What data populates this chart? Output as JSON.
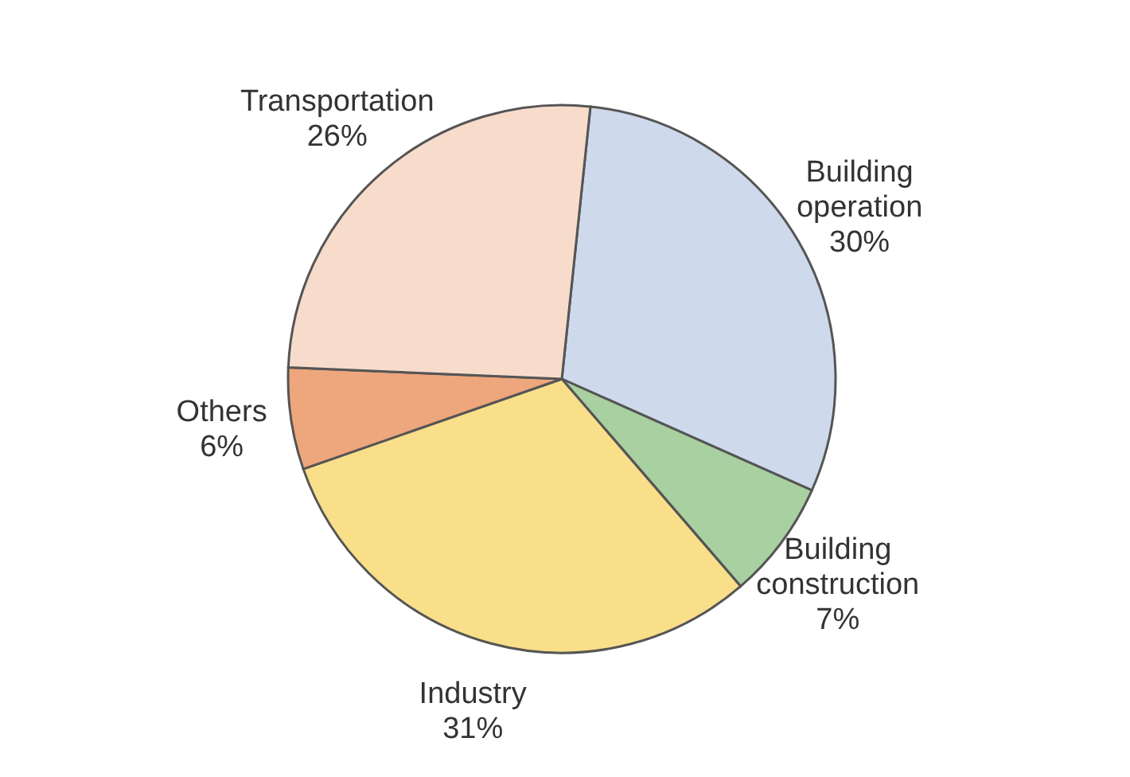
{
  "chart_data": {
    "type": "pie",
    "categories": [
      "Building operation",
      "Building construction",
      "Industry",
      "Others",
      "Transportation"
    ],
    "values": [
      30,
      7,
      31,
      6,
      26
    ],
    "value_labels": [
      "30%",
      "7%",
      "31%",
      "6%",
      "26%"
    ],
    "colors": [
      "#cfd9ec",
      "#a9d0a0",
      "#f9df8a",
      "#eea67c",
      "#f8dccb"
    ]
  }
}
